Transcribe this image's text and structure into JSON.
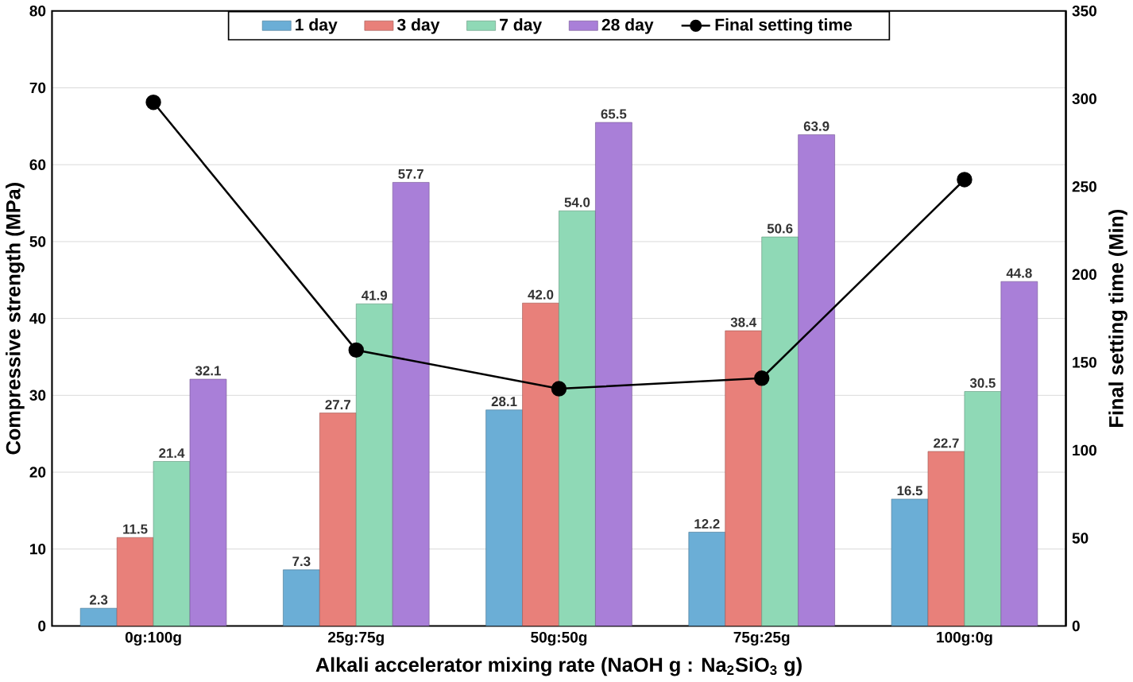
{
  "chart_data": {
    "type": "bar",
    "xlabel": "Alkali accelerator mixing rate (NaOH g : Na$_{2}$SiO$_{3}$ g)",
    "ylabel": "Compressive strength (MPa)",
    "y2label": "Final setting time (Min)",
    "categories": [
      "0g:100g",
      "25g:75g",
      "50g:50g",
      "75g:25g",
      "100g:0g"
    ],
    "series": [
      {
        "name": "1 day",
        "color": "#6baed6",
        "values": [
          2.3,
          7.3,
          28.1,
          12.2,
          16.5
        ],
        "value_labels": [
          "2.3",
          "7.3",
          "28.1",
          "12.2",
          "16.5"
        ]
      },
      {
        "name": "3 day",
        "color": "#e8807a",
        "values": [
          11.5,
          27.7,
          42.0,
          38.4,
          22.7
        ],
        "value_labels": [
          "11.5",
          "27.7",
          "42.0",
          "38.4",
          "22.7"
        ]
      },
      {
        "name": "7 day",
        "color": "#8fd9b6",
        "values": [
          21.4,
          41.9,
          54.0,
          50.6,
          30.5
        ],
        "value_labels": [
          "21.4",
          "41.9",
          "54.0",
          "50.6",
          "30.5"
        ]
      },
      {
        "name": "28 day",
        "color": "#a97fd8",
        "values": [
          32.1,
          57.7,
          65.5,
          63.9,
          44.8
        ],
        "value_labels": [
          "32.1",
          "57.7",
          "65.5",
          "63.9",
          "44.8"
        ]
      },
      {
        "name": "Final setting time",
        "type": "line",
        "axis": "y2",
        "color": "#000000",
        "marker": "circle",
        "values": [
          298,
          157,
          135,
          141,
          254
        ]
      }
    ],
    "ylim": [
      0,
      80
    ],
    "yticks": [
      0,
      10,
      20,
      30,
      40,
      50,
      60,
      70,
      80
    ],
    "y2lim": [
      0,
      350
    ],
    "y2ticks": [
      0,
      50,
      100,
      150,
      200,
      250,
      300,
      350
    ],
    "grid": "y",
    "legend": "top"
  }
}
